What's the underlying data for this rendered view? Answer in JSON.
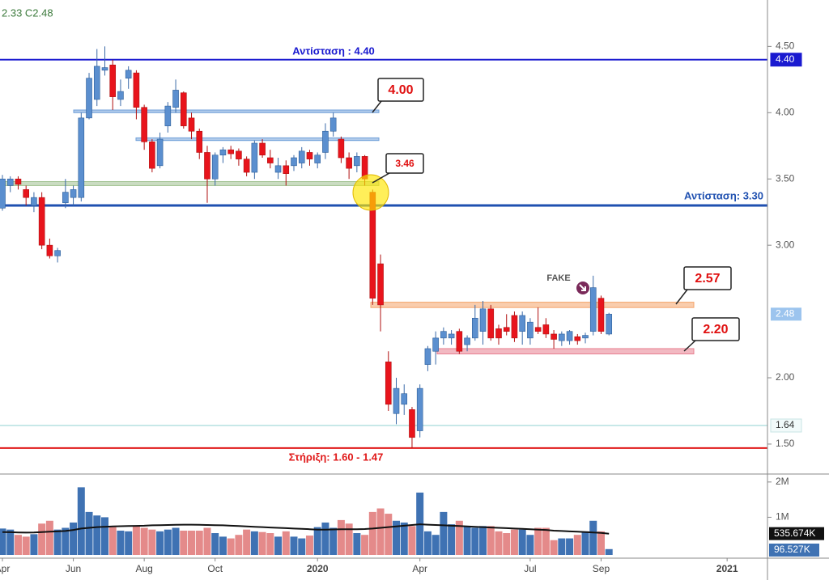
{
  "chart_data": [
    {
      "type": "candlestick",
      "header": "2.33 C2.48",
      "categories": [
        "Apr",
        null,
        null,
        null,
        null,
        null,
        null,
        null,
        null,
        "Jun",
        null,
        null,
        null,
        null,
        null,
        null,
        null,
        null,
        "Aug",
        null,
        null,
        null,
        null,
        null,
        null,
        null,
        null,
        "Oct",
        null,
        null,
        null,
        null,
        null,
        null,
        null,
        null,
        null,
        null,
        null,
        null,
        "2020",
        null,
        null,
        null,
        null,
        null,
        null,
        null,
        null,
        null,
        null,
        null,
        null,
        "Apr",
        null,
        null,
        null,
        null,
        null,
        null,
        null,
        null,
        null,
        null,
        null,
        null,
        null,
        "Jul",
        null,
        null,
        null,
        null,
        null,
        null,
        null,
        null,
        "Sep",
        null,
        null,
        null,
        null,
        null,
        null,
        null,
        null,
        null,
        null,
        null,
        null,
        null,
        null,
        null,
        "2021"
      ],
      "ohlc": [
        [
          3.28,
          3.53,
          3.26,
          3.5
        ],
        [
          3.45,
          3.52,
          3.4,
          3.5
        ],
        [
          3.5,
          3.52,
          3.42,
          3.46
        ],
        [
          3.42,
          3.45,
          3.3,
          3.36
        ],
        [
          3.3,
          3.4,
          3.25,
          3.36
        ],
        [
          3.36,
          3.4,
          2.97,
          3.0
        ],
        [
          3.0,
          3.05,
          2.9,
          2.92
        ],
        [
          2.92,
          2.98,
          2.87,
          2.96
        ],
        [
          3.32,
          3.5,
          3.28,
          3.4
        ],
        [
          3.36,
          3.45,
          3.3,
          3.42
        ],
        [
          3.36,
          4.0,
          3.33,
          3.96
        ],
        [
          3.96,
          4.3,
          3.95,
          4.26
        ],
        [
          4.1,
          4.48,
          4.05,
          4.35
        ],
        [
          4.32,
          4.5,
          4.28,
          4.34
        ],
        [
          4.36,
          4.4,
          4.02,
          4.12
        ],
        [
          4.1,
          4.25,
          4.05,
          4.16
        ],
        [
          4.26,
          4.35,
          4.18,
          4.32
        ],
        [
          4.3,
          4.32,
          3.95,
          4.04
        ],
        [
          4.04,
          4.06,
          3.72,
          3.78
        ],
        [
          3.78,
          3.8,
          3.55,
          3.58
        ],
        [
          3.6,
          3.85,
          3.58,
          3.8
        ],
        [
          3.9,
          4.08,
          3.85,
          4.05
        ],
        [
          4.04,
          4.25,
          4.0,
          4.17
        ],
        [
          4.15,
          4.16,
          3.88,
          3.9
        ],
        [
          3.96,
          4.0,
          3.8,
          3.86
        ],
        [
          3.86,
          3.88,
          3.65,
          3.7
        ],
        [
          3.7,
          3.75,
          3.32,
          3.5
        ],
        [
          3.5,
          3.7,
          3.45,
          3.68
        ],
        [
          3.68,
          3.74,
          3.62,
          3.72
        ],
        [
          3.72,
          3.75,
          3.65,
          3.69
        ],
        [
          3.71,
          3.73,
          3.6,
          3.65
        ],
        [
          3.65,
          3.67,
          3.52,
          3.55
        ],
        [
          3.55,
          3.79,
          3.5,
          3.77
        ],
        [
          3.77,
          3.8,
          3.66,
          3.68
        ],
        [
          3.66,
          3.72,
          3.58,
          3.62
        ],
        [
          3.55,
          3.66,
          3.5,
          3.6
        ],
        [
          3.6,
          3.64,
          3.45,
          3.54
        ],
        [
          3.6,
          3.68,
          3.56,
          3.66
        ],
        [
          3.62,
          3.74,
          3.58,
          3.71
        ],
        [
          3.7,
          3.72,
          3.6,
          3.65
        ],
        [
          3.62,
          3.7,
          3.58,
          3.68
        ],
        [
          3.7,
          3.92,
          3.65,
          3.86
        ],
        [
          3.86,
          4.0,
          3.82,
          3.96
        ],
        [
          3.8,
          3.82,
          3.62,
          3.66
        ],
        [
          3.66,
          3.7,
          3.5,
          3.58
        ],
        [
          3.6,
          3.7,
          3.55,
          3.67
        ],
        [
          3.67,
          3.68,
          3.45,
          3.5
        ],
        [
          3.4,
          3.42,
          2.55,
          2.6
        ],
        [
          2.86,
          2.93,
          2.35,
          2.55
        ],
        [
          2.12,
          2.2,
          1.75,
          1.8
        ],
        [
          1.73,
          2.0,
          1.65,
          1.92
        ],
        [
          1.8,
          1.95,
          1.72,
          1.88
        ],
        [
          1.76,
          1.78,
          1.47,
          1.55
        ],
        [
          1.6,
          1.95,
          1.55,
          1.92
        ],
        [
          2.1,
          2.24,
          2.05,
          2.22
        ],
        [
          2.2,
          2.35,
          2.1,
          2.3
        ],
        [
          2.3,
          2.38,
          2.25,
          2.35
        ],
        [
          2.3,
          2.36,
          2.25,
          2.33
        ],
        [
          2.35,
          2.37,
          2.18,
          2.2
        ],
        [
          2.25,
          2.32,
          2.2,
          2.3
        ],
        [
          2.3,
          2.55,
          2.28,
          2.45
        ],
        [
          2.35,
          2.58,
          2.25,
          2.52
        ],
        [
          2.52,
          2.55,
          2.28,
          2.3
        ],
        [
          2.37,
          2.4,
          2.25,
          2.3
        ],
        [
          2.38,
          2.48,
          2.32,
          2.35
        ],
        [
          2.47,
          2.5,
          2.27,
          2.3
        ],
        [
          2.35,
          2.5,
          2.25,
          2.47
        ],
        [
          2.3,
          2.45,
          2.25,
          2.42
        ],
        [
          2.38,
          2.53,
          2.33,
          2.35
        ],
        [
          2.4,
          2.45,
          2.3,
          2.33
        ],
        [
          2.33,
          2.36,
          2.22,
          2.29
        ],
        [
          2.28,
          2.35,
          2.24,
          2.33
        ],
        [
          2.28,
          2.36,
          2.25,
          2.35
        ],
        [
          2.31,
          2.33,
          2.25,
          2.28
        ],
        [
          2.3,
          2.34,
          2.26,
          2.32
        ],
        [
          2.35,
          2.77,
          2.32,
          2.68
        ],
        [
          2.6,
          2.62,
          2.33,
          2.35
        ],
        [
          2.33,
          2.49,
          2.32,
          2.48
        ],
        null,
        null,
        null,
        null,
        null,
        null,
        null,
        null,
        null,
        null,
        null,
        null,
        null,
        null,
        null
      ],
      "up_color": "#5b8fcf",
      "down_color": "#e8141c",
      "ylim": [
        1.28,
        4.85
      ],
      "yticks": [
        {
          "value": 1.5,
          "label": "1.50"
        },
        {
          "value": 2,
          "label": "2.00"
        },
        {
          "value": 3,
          "label": "3.00"
        },
        {
          "value": 3.5,
          "label": "3.50"
        },
        {
          "value": 4,
          "label": "4.00"
        },
        {
          "value": 4.5,
          "label": "4.50"
        }
      ],
      "levels": [
        {
          "value": 4.4,
          "label": "Αντίσταση : 4.40",
          "axis_label": "4.40",
          "color": "#1a1ad0"
        },
        {
          "value": 3.3,
          "label": "Αντίσταση: 3.30",
          "color": "#1f50b0"
        },
        {
          "value": 1.64,
          "axis_label": "1.64",
          "color": "#8fd0d0"
        },
        {
          "value": 1.47,
          "label": "Στήριξη: 1.60 - 1.47",
          "color": "#e01818"
        }
      ],
      "zones": [
        {
          "low": 4.0,
          "high": 4.02,
          "color": "#6f9fd8"
        },
        {
          "low": 3.79,
          "high": 3.81,
          "color": "#6f9fd8"
        },
        {
          "low": 3.45,
          "high": 3.48,
          "color": "#9fc08f"
        },
        {
          "low": 2.53,
          "high": 2.57,
          "color": "#f4a46a"
        },
        {
          "low": 2.18,
          "high": 2.22,
          "color": "#e88090"
        }
      ],
      "callouts": [
        "4.00",
        "3.46",
        "2.57",
        "2.20"
      ],
      "marker": "FAKE",
      "last_price": {
        "value": 2.48,
        "label": "2.48"
      }
    },
    {
      "type": "bar",
      "values": [
        680000,
        650000,
        500000,
        450000,
        520000,
        820000,
        900000,
        650000,
        700000,
        850000,
        1850000,
        1150000,
        1050000,
        1000000,
        720000,
        620000,
        600000,
        750000,
        700000,
        650000,
        600000,
        650000,
        700000,
        620000,
        620000,
        620000,
        700000,
        550000,
        450000,
        400000,
        500000,
        650000,
        600000,
        580000,
        550000,
        450000,
        600000,
        450000,
        400000,
        480000,
        720000,
        850000,
        700000,
        920000,
        820000,
        550000,
        500000,
        1150000,
        1250000,
        1100000,
        900000,
        850000,
        750000,
        1700000,
        600000,
        500000,
        1150000,
        800000,
        900000,
        750000,
        700000,
        750000,
        750000,
        600000,
        550000,
        650000,
        650000,
        500000,
        700000,
        700000,
        350000,
        400000,
        400000,
        500000,
        600000,
        900000,
        600000,
        96527,
        null,
        null,
        null,
        null,
        null,
        null,
        null,
        null,
        null,
        null,
        null,
        null,
        null,
        null,
        null
      ],
      "value_labels_last": "96.527K",
      "ma": {
        "values": [
          580000,
          575000,
          570000,
          565000,
          570000,
          580000,
          590000,
          600000,
          610000,
          640000,
          680000,
          700000,
          720000,
          730000,
          740000,
          745000,
          750000,
          755000,
          760000,
          770000,
          775000,
          780000,
          785000,
          790000,
          790000,
          785000,
          780000,
          775000,
          770000,
          760000,
          750000,
          740000,
          730000,
          720000,
          710000,
          700000,
          690000,
          680000,
          670000,
          660000,
          650000,
          650000,
          655000,
          660000,
          660000,
          660000,
          665000,
          680000,
          700000,
          720000,
          740000,
          760000,
          780000,
          800000,
          790000,
          780000,
          770000,
          760000,
          750000,
          740000,
          730000,
          720000,
          710000,
          700000,
          690000,
          680000,
          670000,
          660000,
          650000,
          640000,
          620000,
          610000,
          600000,
          590000,
          580000,
          570000,
          555000,
          535674,
          null,
          null,
          null,
          null,
          null,
          null,
          null,
          null,
          null,
          null,
          null,
          null,
          null,
          null,
          null
        ],
        "last_label": "535.674K",
        "color": "#111111"
      },
      "ylim": [
        0,
        2180000
      ],
      "yticks": [
        {
          "value": 1000000,
          "label": "1M"
        },
        {
          "value": 2000000,
          "label": "2M"
        }
      ]
    }
  ]
}
